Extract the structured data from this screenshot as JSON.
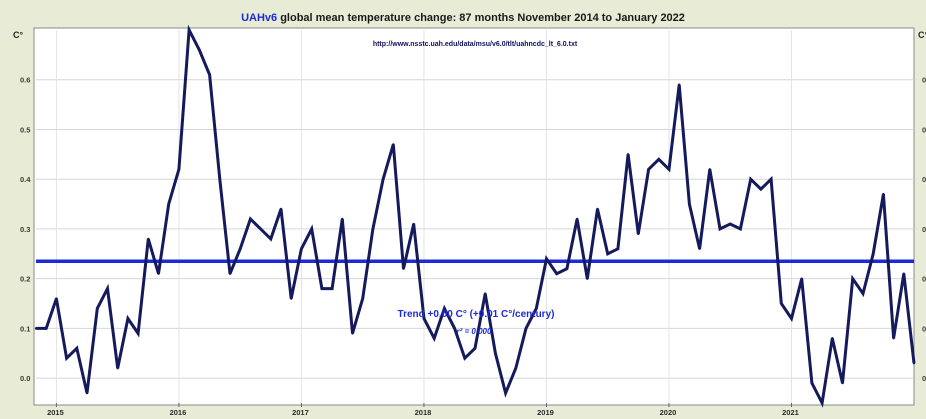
{
  "chart_data": {
    "type": "line",
    "title_prefix": "UAHv6",
    "title_rest": " global mean temperature change: 87 months November 2014 to January 2022",
    "source_url": "http://www.nsstc.uah.edu/data/msu/v6.0/tlt/uahncdc_lt_6.0.txt",
    "ylabel_left": "C°",
    "ylabel_right": "C°",
    "ylim": [
      -0.05,
      0.7
    ],
    "yticks": [
      0.0,
      0.1,
      0.2,
      0.3,
      0.4,
      0.5,
      0.6
    ],
    "ytick_labels": [
      "0.0",
      "0.1",
      "0.2",
      "0.3",
      "0.4",
      "0.5",
      "0.6"
    ],
    "x_start_year": 2014,
    "x_start_month": 11,
    "xticks": [
      2015,
      2016,
      2017,
      2018,
      2019,
      2020,
      2021
    ],
    "xtick_labels": [
      "2015",
      "2016",
      "2017",
      "2018",
      "2019",
      "2020",
      "2021"
    ],
    "grid": true,
    "series": [
      {
        "color": "#141a5c",
        "values": [
          0.1,
          0.1,
          0.16,
          0.04,
          0.06,
          -0.03,
          0.14,
          0.18,
          0.02,
          0.12,
          0.09,
          0.28,
          0.21,
          0.35,
          0.42,
          0.7,
          0.66,
          0.61,
          0.4,
          0.21,
          0.26,
          0.32,
          0.3,
          0.28,
          0.34,
          0.16,
          0.26,
          0.3,
          0.18,
          0.18,
          0.32,
          0.09,
          0.16,
          0.3,
          0.4,
          0.47,
          0.22,
          0.31,
          0.12,
          0.08,
          0.14,
          0.1,
          0.04,
          0.06,
          0.17,
          0.05,
          -0.03,
          0.02,
          0.1,
          0.14,
          0.24,
          0.21,
          0.22,
          0.32,
          0.2,
          0.34,
          0.25,
          0.26,
          0.45,
          0.29,
          0.42,
          0.44,
          0.42,
          0.59,
          0.35,
          0.26,
          0.42,
          0.3,
          0.31,
          0.3,
          0.4,
          0.38,
          0.4,
          0.15,
          0.12,
          0.2,
          -0.01,
          -0.05,
          0.08,
          -0.01,
          0.2,
          0.17,
          0.25,
          0.37,
          0.08,
          0.21,
          0.03
        ]
      }
    ],
    "trend": {
      "value": 0.235,
      "color": "#1d2bd6",
      "label": "Trend +0.00 C° (+0.01 C°/century)",
      "r2_label": "r² = 0.000"
    }
  }
}
